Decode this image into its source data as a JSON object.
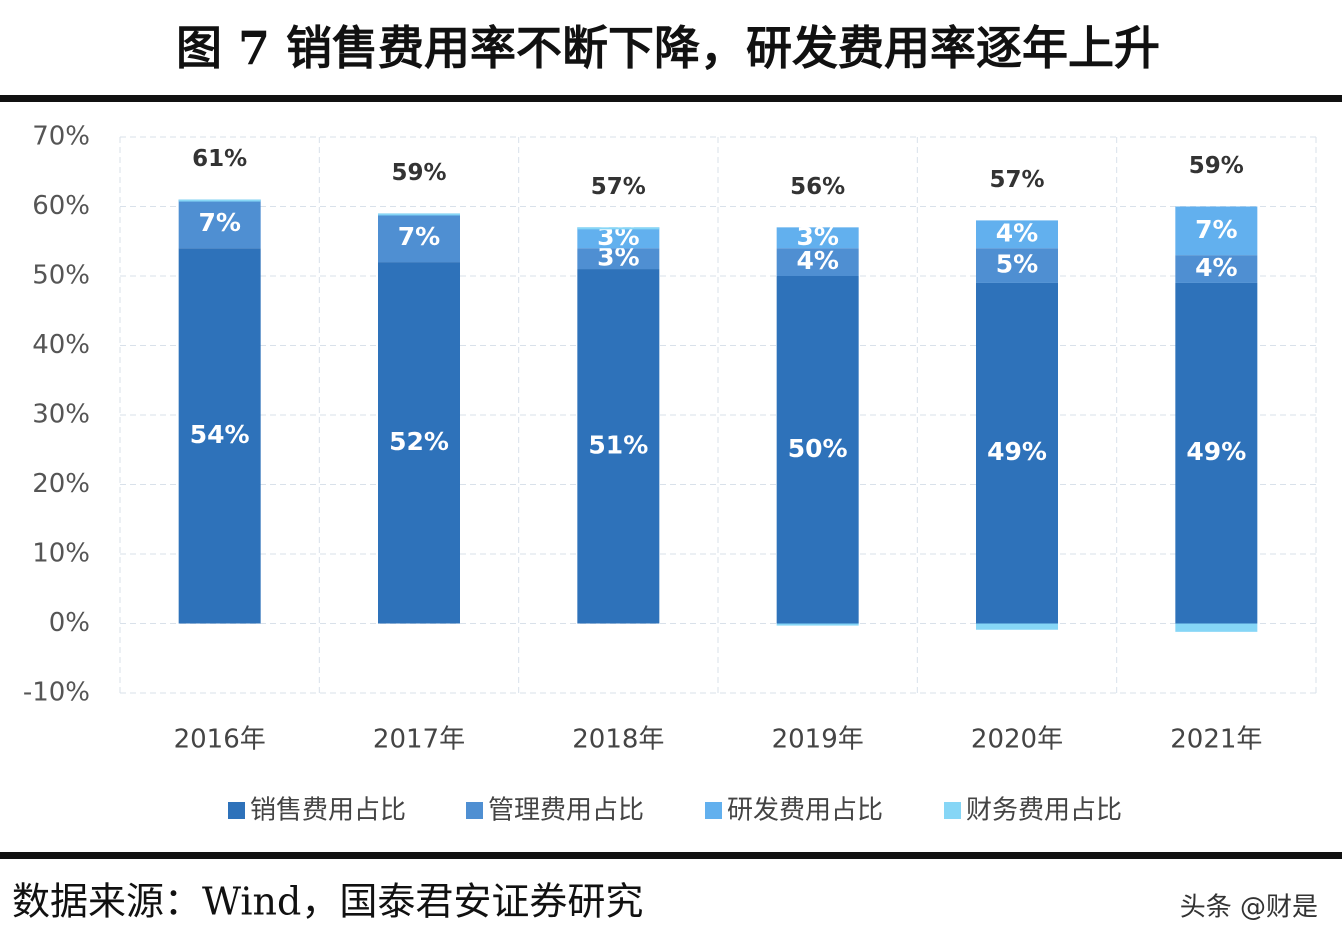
{
  "header": {
    "title": "图 7  销售费用率不断下降，研发费用率逐年上升"
  },
  "chart_data": {
    "type": "stacked_bar",
    "categories": [
      "2016年",
      "2017年",
      "2018年",
      "2019年",
      "2020年",
      "2021年"
    ],
    "series": [
      {
        "name": "销售费用占比",
        "color": "#2e72ba",
        "values": [
          54,
          52,
          51,
          50,
          49,
          49
        ],
        "value_labels": [
          "54%",
          "52%",
          "51%",
          "50%",
          "49%",
          "49%"
        ]
      },
      {
        "name": "管理费用占比",
        "color": "#4f8fd2",
        "values": [
          7,
          7,
          3,
          4,
          5,
          4
        ],
        "value_labels": [
          "7%",
          "7%",
          "3%",
          "4%",
          "5%",
          "4%"
        ]
      },
      {
        "name": "研发费用占比",
        "color": "#62b0ee",
        "values": [
          null,
          null,
          3,
          3,
          4,
          7
        ],
        "value_labels": [
          null,
          null,
          "3%",
          "3%",
          "4%",
          "7%"
        ]
      },
      {
        "name": "财务费用占比",
        "color": "#86d6f6",
        "values": [
          0,
          0,
          0,
          -0.3,
          -0.9,
          -1.2
        ]
      }
    ],
    "totals": {
      "values": [
        61,
        59,
        57,
        56,
        57,
        59
      ],
      "value_labels": [
        "61%",
        "59%",
        "57%",
        "56%",
        "57%",
        "59%"
      ]
    },
    "ylim": [
      -10,
      70
    ],
    "yticks": [
      {
        "value": -10,
        "label": "-10%"
      },
      {
        "value": 0,
        "label": "0%"
      },
      {
        "value": 10,
        "label": "10%"
      },
      {
        "value": 20,
        "label": "20%"
      },
      {
        "value": 30,
        "label": "30%"
      },
      {
        "value": 40,
        "label": "40%"
      },
      {
        "value": 50,
        "label": "50%"
      },
      {
        "value": 60,
        "label": "60%"
      },
      {
        "value": 70,
        "label": "70%"
      }
    ],
    "grid": true
  },
  "footer": {
    "source": "数据来源：Wind，国泰君安证券研究",
    "watermark": "头条 @财是"
  }
}
